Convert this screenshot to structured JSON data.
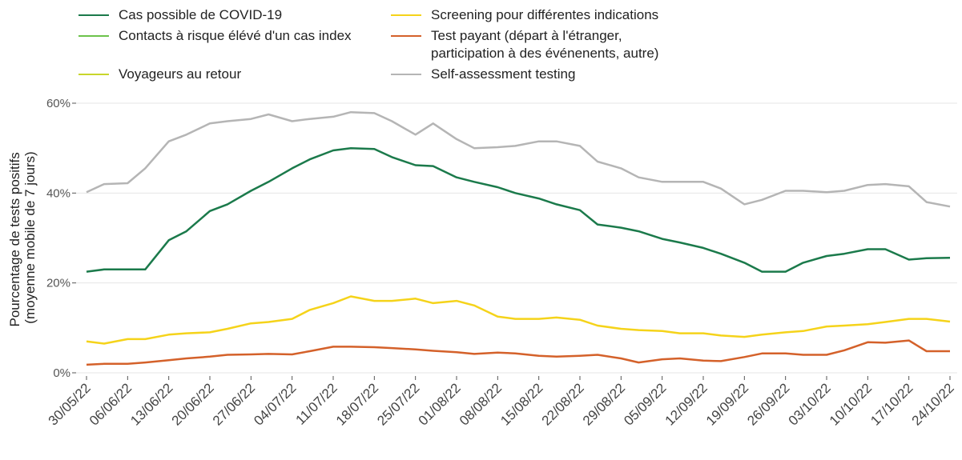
{
  "chart_data": {
    "type": "line",
    "ylabel": [
      "Pourcentage de tests positifs",
      "(moyenne mobile de 7 jours)"
    ],
    "x": [
      "30/05/22",
      "02/06/22",
      "06/06/22",
      "09/06/22",
      "13/06/22",
      "16/06/22",
      "20/06/22",
      "23/06/22",
      "27/06/22",
      "30/06/22",
      "04/07/22",
      "07/07/22",
      "11/07/22",
      "14/07/22",
      "18/07/22",
      "21/07/22",
      "25/07/22",
      "28/07/22",
      "01/08/22",
      "04/08/22",
      "08/08/22",
      "11/08/22",
      "15/08/22",
      "18/08/22",
      "22/08/22",
      "25/08/22",
      "29/08/22",
      "01/09/22",
      "05/09/22",
      "08/09/22",
      "12/09/22",
      "15/09/22",
      "19/09/22",
      "22/09/22",
      "26/09/22",
      "29/09/22",
      "03/10/22",
      "06/10/22",
      "10/10/22",
      "13/10/22",
      "17/10/22",
      "20/10/22",
      "24/10/22"
    ],
    "series": [
      {
        "name": "Cas possible de COVID-19",
        "color": "#1b7a4b",
        "values": [
          22.5,
          23,
          23,
          23,
          29.5,
          31.5,
          36,
          37.5,
          40.5,
          42.5,
          45.5,
          47.5,
          49.5,
          50,
          49.8,
          48,
          46.2,
          46,
          43.5,
          42.5,
          41.3,
          40,
          38.8,
          37.5,
          36.2,
          33,
          32.3,
          31.5,
          29.8,
          29,
          27.8,
          26.5,
          24.5,
          22.5,
          22.5,
          24.5,
          26,
          26.5,
          27.5,
          27.5,
          25.2,
          25.5,
          25.6
        ]
      },
      {
        "name": "Contacts à risque élévé d'un cas index",
        "color": "#6cc24a",
        "values": [
          null,
          null,
          null,
          null,
          null,
          null,
          null,
          null,
          null,
          null,
          null,
          null,
          null,
          null,
          null,
          null,
          null,
          null,
          null,
          null,
          null,
          null,
          null,
          null,
          null,
          null,
          null,
          null,
          null,
          null,
          null,
          null,
          null,
          null,
          null,
          null,
          null,
          null,
          null,
          null,
          null,
          null,
          null
        ]
      },
      {
        "name": "Voyageurs au retour",
        "color": "#c8d62b",
        "values": [
          null,
          null,
          null,
          null,
          null,
          null,
          null,
          null,
          null,
          null,
          null,
          null,
          null,
          null,
          null,
          null,
          null,
          null,
          null,
          null,
          null,
          null,
          null,
          null,
          null,
          null,
          null,
          null,
          null,
          null,
          null,
          null,
          null,
          null,
          null,
          null,
          null,
          null,
          null,
          null,
          null,
          null,
          null
        ]
      },
      {
        "name": "Screening pour différentes indications",
        "color": "#f5d31a",
        "values": [
          7,
          6.5,
          7.5,
          7.5,
          8.5,
          8.8,
          9,
          9.8,
          11,
          11.3,
          12,
          14,
          15.5,
          17,
          16,
          16,
          16.5,
          15.5,
          16,
          15,
          12.5,
          12,
          12,
          12.3,
          11.8,
          10.5,
          9.8,
          9.5,
          9.3,
          8.8,
          8.8,
          8.3,
          8,
          8.5,
          9,
          9.3,
          10.3,
          10.5,
          10.8,
          11.3,
          12,
          12,
          11.4
        ]
      },
      {
        "name": "Test payant (départ à l'étranger, participation à des événenents, autre)",
        "color": "#d4612a",
        "values": [
          1.8,
          2,
          2,
          2.3,
          2.8,
          3.2,
          3.6,
          4,
          4.1,
          4.2,
          4.1,
          4.8,
          5.8,
          5.8,
          5.7,
          5.5,
          5.2,
          4.9,
          4.6,
          4.2,
          4.5,
          4.3,
          3.8,
          3.6,
          3.8,
          4,
          3.2,
          2.3,
          3,
          3.2,
          2.7,
          2.6,
          3.5,
          4.3,
          4.3,
          4,
          4,
          5,
          6.8,
          6.7,
          7.2,
          4.8,
          4.8
        ]
      },
      {
        "name": "Self-assessment testing",
        "color": "#b5b5b5",
        "values": [
          40.2,
          42,
          42.2,
          45.5,
          51.5,
          53,
          55.5,
          56,
          56.5,
          57.5,
          56,
          56.5,
          57,
          58,
          57.8,
          56,
          53,
          55.5,
          52,
          50,
          50.2,
          50.5,
          51.5,
          51.5,
          50.5,
          47,
          45.5,
          43.5,
          42.5,
          42.5,
          42.5,
          41,
          37.5,
          38.5,
          40.5,
          40.5,
          40.2,
          40.5,
          41.8,
          42,
          41.5,
          38,
          37
        ]
      }
    ],
    "xlim": [
      "30/05/22",
      "24/10/22"
    ],
    "xticks": [
      "30/05/22",
      "06/06/22",
      "13/06/22",
      "20/06/22",
      "27/06/22",
      "04/07/22",
      "11/07/22",
      "18/07/22",
      "25/07/22",
      "01/08/22",
      "08/08/22",
      "15/08/22",
      "22/08/22",
      "29/08/22",
      "05/09/22",
      "12/09/22",
      "19/09/22",
      "26/09/22",
      "03/10/22",
      "10/10/22",
      "17/10/22",
      "24/10/22"
    ],
    "ylim": [
      0,
      60
    ],
    "yticks": [
      {
        "value": 0,
        "label": "0%"
      },
      {
        "value": 20,
        "label": "20%"
      },
      {
        "value": 40,
        "label": "40%"
      },
      {
        "value": 60,
        "label": "60%"
      }
    ],
    "grid": true,
    "legend": "top"
  }
}
